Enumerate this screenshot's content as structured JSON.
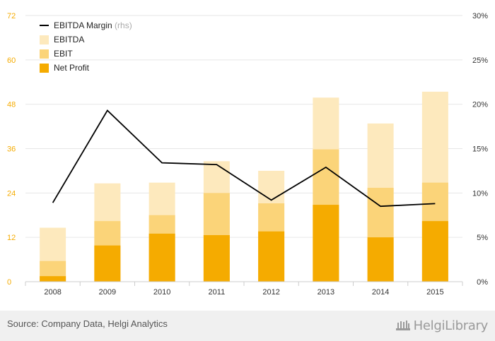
{
  "chart_data": {
    "type": "bar",
    "stacked": true,
    "categories": [
      "2008",
      "2009",
      "2010",
      "2011",
      "2012",
      "2013",
      "2014",
      "2015"
    ],
    "series": [
      {
        "name": "Net Profit",
        "kind": "bar",
        "color": "#f5ab00",
        "values": [
          1.5,
          9.8,
          13.0,
          12.6,
          13.6,
          20.8,
          12.0,
          16.4
        ]
      },
      {
        "name": "EBIT",
        "kind": "bar",
        "color": "#fbd479",
        "values": [
          5.6,
          16.4,
          18.0,
          24.0,
          21.2,
          35.8,
          25.4,
          26.8
        ]
      },
      {
        "name": "EBITDA",
        "kind": "bar",
        "color": "#fde9bd",
        "values": [
          14.6,
          26.6,
          26.8,
          32.6,
          30.0,
          49.8,
          42.8,
          51.4
        ]
      },
      {
        "name": "EBITDA Margin",
        "name_suffix": "(rhs)",
        "kind": "line",
        "axis": "right",
        "color": "#000000",
        "values": [
          8.9,
          19.3,
          13.4,
          13.2,
          9.2,
          12.9,
          8.5,
          8.8
        ]
      }
    ],
    "y_left": {
      "min": 0,
      "max": 72,
      "ticks": [
        "0",
        "12",
        "24",
        "36",
        "48",
        "60",
        "72"
      ],
      "color": "#f5ab00"
    },
    "y_right": {
      "min": 0,
      "max": 30,
      "ticks": [
        "0%",
        "5%",
        "10%",
        "15%",
        "20%",
        "25%",
        "30%"
      ],
      "unit": "%"
    },
    "grid": true,
    "legend": "top-left"
  },
  "footer": {
    "source": "Source: Company Data, Helgi Analytics",
    "logo_text": "HelgiLibrary"
  }
}
